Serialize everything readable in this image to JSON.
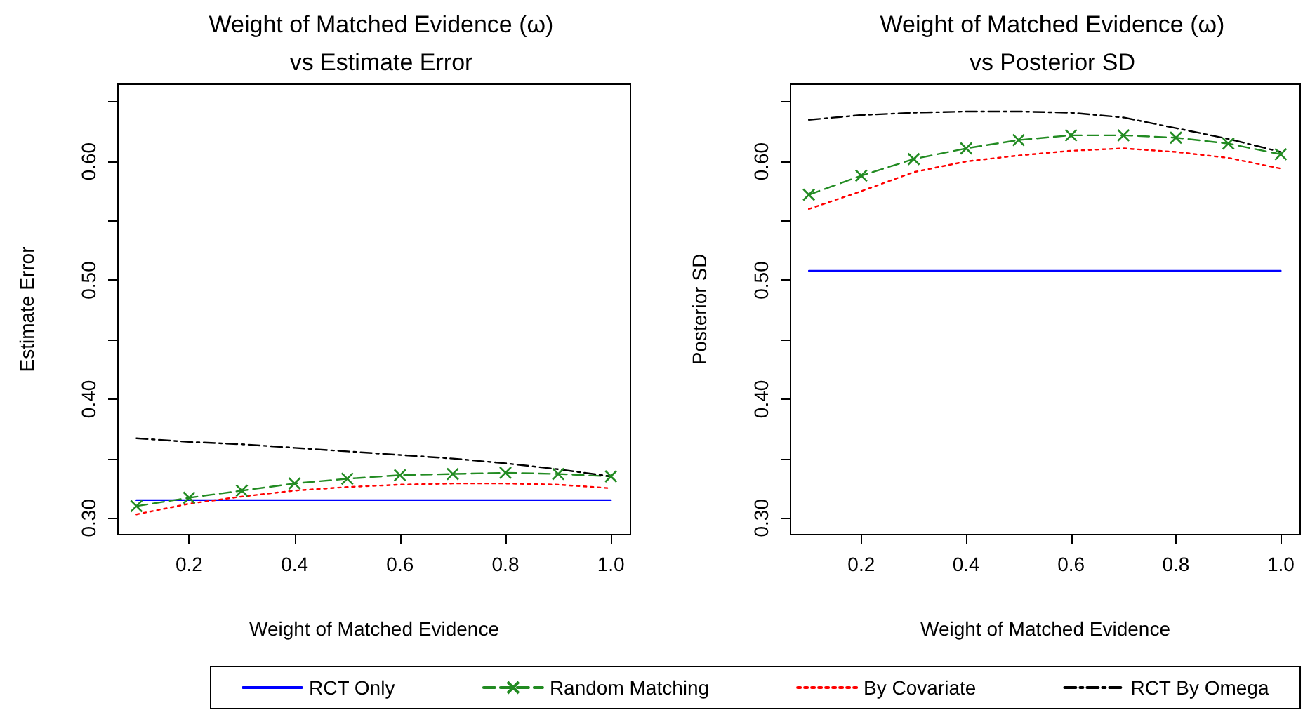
{
  "chart_data": [
    {
      "type": "line",
      "title": "Weight of Matched Evidence (ω)",
      "subtitle": "vs Estimate Error",
      "xlabel": "Weight of Matched Evidence",
      "ylabel": "Estimate Error",
      "x": [
        0.1,
        0.2,
        0.3,
        0.4,
        0.5,
        0.6,
        0.7,
        0.8,
        0.9,
        1.0
      ],
      "xlim": [
        0.065,
        1.037
      ],
      "xticks": [
        0.2,
        0.4,
        0.6,
        0.8,
        {
          "value": 1.0,
          "label": "1.0"
        }
      ],
      "ylim": [
        0.286,
        0.665
      ],
      "yticks": [
        {
          "value": 0.3,
          "label": "0.30"
        },
        {
          "value": 0.35,
          "label": null
        },
        {
          "value": 0.4,
          "label": "0.40"
        },
        {
          "value": 0.45,
          "label": null
        },
        {
          "value": 0.5,
          "label": "0.50"
        },
        {
          "value": 0.55,
          "label": null
        },
        {
          "value": 0.6,
          "label": "0.60"
        },
        {
          "value": 0.65,
          "label": null
        }
      ],
      "grid": false,
      "series": [
        {
          "color": "#0000ff",
          "line_style": "solid",
          "marker": "none",
          "values": [
            0.315,
            0.315,
            0.315,
            0.315,
            0.315,
            0.315,
            0.315,
            0.315,
            0.315,
            0.315
          ]
        },
        {
          "color": "#228b22",
          "line_style": "dashed",
          "marker": "cross",
          "values": [
            0.31,
            0.317,
            0.323,
            0.329,
            0.333,
            0.336,
            0.337,
            0.338,
            0.337,
            0.335
          ]
        },
        {
          "color": "#ff0000",
          "line_style": "dotted",
          "marker": "none",
          "values": [
            0.303,
            0.312,
            0.318,
            0.323,
            0.326,
            0.328,
            0.329,
            0.329,
            0.328,
            0.325
          ]
        },
        {
          "color": "#000000",
          "line_style": "dashdot",
          "marker": "none",
          "values": [
            0.367,
            0.364,
            0.362,
            0.359,
            0.356,
            0.353,
            0.35,
            0.346,
            0.341,
            0.335
          ]
        }
      ]
    },
    {
      "type": "line",
      "title": "Weight of Matched Evidence (ω)",
      "subtitle": "vs Posterior SD",
      "xlabel": "Weight of Matched Evidence",
      "ylabel": "Posterior SD",
      "x": [
        0.1,
        0.2,
        0.3,
        0.4,
        0.5,
        0.6,
        0.7,
        0.8,
        0.9,
        1.0
      ],
      "xlim": [
        0.065,
        1.037
      ],
      "xticks": [
        0.2,
        0.4,
        0.6,
        0.8,
        {
          "value": 1.0,
          "label": "1.0"
        }
      ],
      "ylim": [
        0.286,
        0.665
      ],
      "yticks": [
        {
          "value": 0.3,
          "label": "0.30"
        },
        {
          "value": 0.35,
          "label": null
        },
        {
          "value": 0.4,
          "label": "0.40"
        },
        {
          "value": 0.45,
          "label": null
        },
        {
          "value": 0.5,
          "label": "0.50"
        },
        {
          "value": 0.55,
          "label": null
        },
        {
          "value": 0.6,
          "label": "0.60"
        },
        {
          "value": 0.65,
          "label": null
        }
      ],
      "grid": false,
      "legend": "bottom",
      "series": [
        {
          "name": "RCT Only",
          "color": "#0000ff",
          "line_style": "solid",
          "marker": "none",
          "values": [
            0.508,
            0.508,
            0.508,
            0.508,
            0.508,
            0.508,
            0.508,
            0.508,
            0.508,
            0.508
          ]
        },
        {
          "name": "Random Matching",
          "color": "#228b22",
          "line_style": "dashed",
          "marker": "cross",
          "values": [
            0.572,
            0.588,
            0.602,
            0.611,
            0.618,
            0.622,
            0.622,
            0.62,
            0.615,
            0.606
          ]
        },
        {
          "name": "By Covariate",
          "color": "#ff0000",
          "line_style": "dotted",
          "marker": "none",
          "values": [
            0.56,
            0.575,
            0.591,
            0.6,
            0.605,
            0.609,
            0.611,
            0.608,
            0.603,
            0.594
          ]
        },
        {
          "name": "RCT By Omega",
          "color": "#000000",
          "line_style": "dashdot",
          "marker": "none",
          "values": [
            0.635,
            0.639,
            0.641,
            0.642,
            0.642,
            0.641,
            0.637,
            0.628,
            0.619,
            0.608
          ]
        }
      ]
    }
  ]
}
